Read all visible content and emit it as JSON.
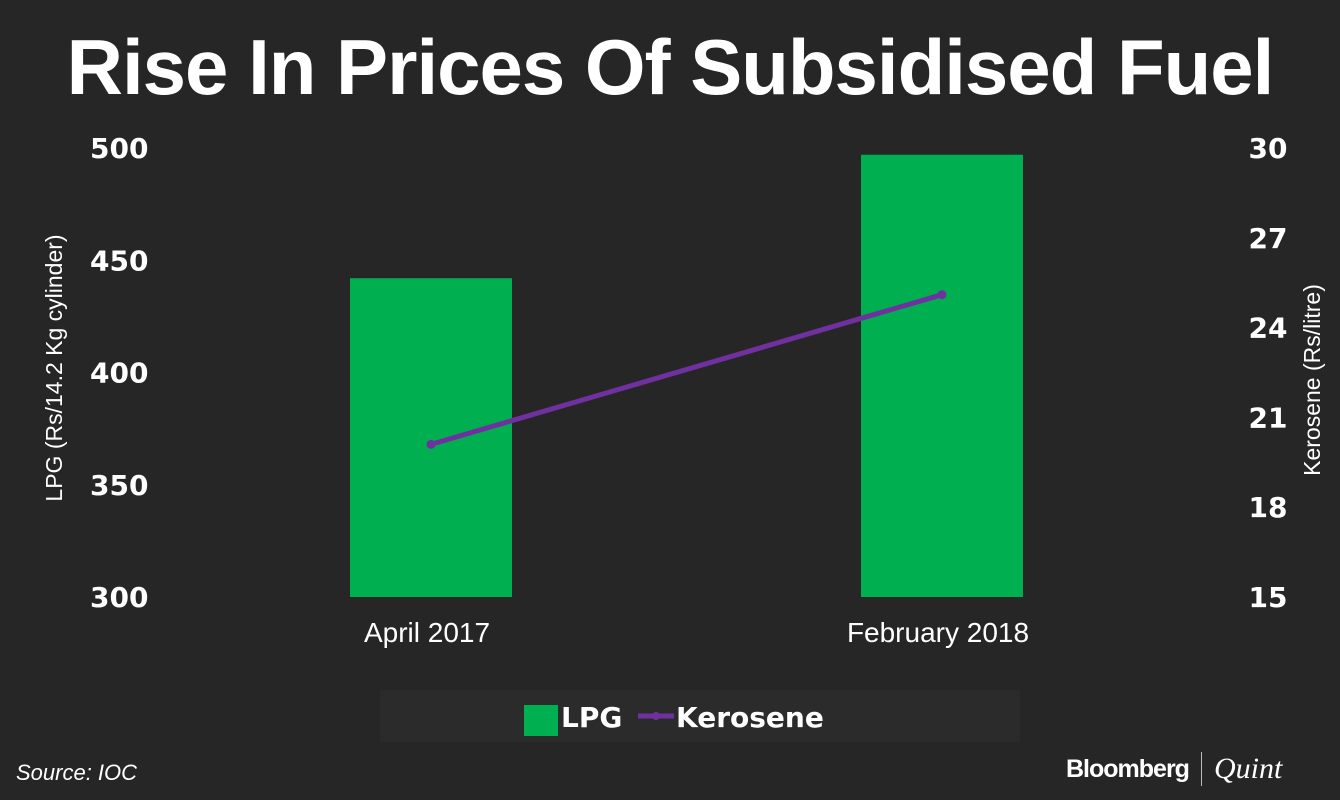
{
  "colors": {
    "background": "#262626",
    "lpg": "#00b050",
    "kerosene": "#7030a0",
    "legend_bg": "#2b2b2b"
  },
  "chart_data": {
    "type": "bar+line",
    "title": "Rise In Prices Of Subsidised Fuel",
    "categories": [
      "April 2017",
      "February 2018"
    ],
    "series": [
      {
        "name": "LPG",
        "type": "bar",
        "axis": "left",
        "values": [
          442,
          497
        ]
      },
      {
        "name": "Kerosene",
        "type": "line",
        "axis": "right",
        "values": [
          20.1,
          25.1
        ]
      }
    ],
    "ylabel": "LPG (Rs/14.2 Kg cylinder)",
    "ylabel_right": "Kerosene (Rs/litre)",
    "ylim": [
      300,
      500
    ],
    "ylim_right": [
      15,
      30
    ],
    "yticks": [
      300,
      350,
      400,
      450,
      500
    ],
    "yticks_right": [
      15,
      18,
      21,
      24,
      27,
      30
    ],
    "grid": false,
    "legend": "bottom"
  },
  "footer": {
    "source": "Source: IOC",
    "logo_left": "Bloomberg",
    "logo_right": "Quint"
  }
}
